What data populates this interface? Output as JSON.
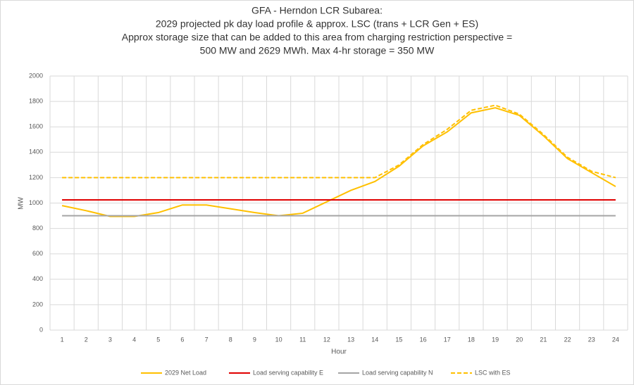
{
  "chart_data": {
    "type": "line",
    "title": [
      "GFA - Herndon LCR Subarea:",
      "2029 projected pk day load profile & approx. LSC (trans + LCR Gen + ES)",
      "Approx storage size that can be added to this area from charging restriction perspective =",
      "500 MW and 2629 MWh. Max 4-hr storage = 350 MW"
    ],
    "x_label": "Hour",
    "y_label": "MW",
    "categories": [
      "1",
      "2",
      "3",
      "4",
      "5",
      "6",
      "7",
      "8",
      "9",
      "10",
      "11",
      "12",
      "13",
      "14",
      "15",
      "16",
      "17",
      "18",
      "19",
      "20",
      "21",
      "22",
      "23",
      "24"
    ],
    "series": [
      {
        "name": "2029 Net Load",
        "color": "#ffc000",
        "dash": false,
        "values": [
          980,
          940,
          895,
          895,
          925,
          985,
          985,
          955,
          925,
          900,
          920,
          1010,
          1100,
          1170,
          1290,
          1450,
          1560,
          1710,
          1750,
          1690,
          1530,
          1350,
          1240,
          1130
        ]
      },
      {
        "name": "Load serving capability E",
        "color": "#e00000",
        "dash": false,
        "values": [
          1025,
          1025,
          1025,
          1025,
          1025,
          1025,
          1025,
          1025,
          1025,
          1025,
          1025,
          1025,
          1025,
          1025,
          1025,
          1025,
          1025,
          1025,
          1025,
          1025,
          1025,
          1025,
          1025,
          1025
        ]
      },
      {
        "name": "Load serving capability N",
        "color": "#a5a5a5",
        "dash": false,
        "values": [
          900,
          900,
          900,
          900,
          900,
          900,
          900,
          900,
          900,
          900,
          900,
          900,
          900,
          900,
          900,
          900,
          900,
          900,
          900,
          900,
          900,
          900,
          900,
          900
        ]
      },
      {
        "name": "LSC with ES",
        "color": "#ffc000",
        "dash": true,
        "values": [
          1200,
          1200,
          1200,
          1200,
          1200,
          1200,
          1200,
          1200,
          1200,
          1200,
          1200,
          1200,
          1200,
          1200,
          1300,
          1460,
          1580,
          1730,
          1770,
          1700,
          1540,
          1360,
          1250,
          1200
        ]
      }
    ],
    "ylim": [
      0,
      2000
    ],
    "yticks": [
      0,
      200,
      400,
      600,
      800,
      1000,
      1200,
      1400,
      1600,
      1800,
      2000
    ],
    "grid": true,
    "legend": "bottom"
  }
}
